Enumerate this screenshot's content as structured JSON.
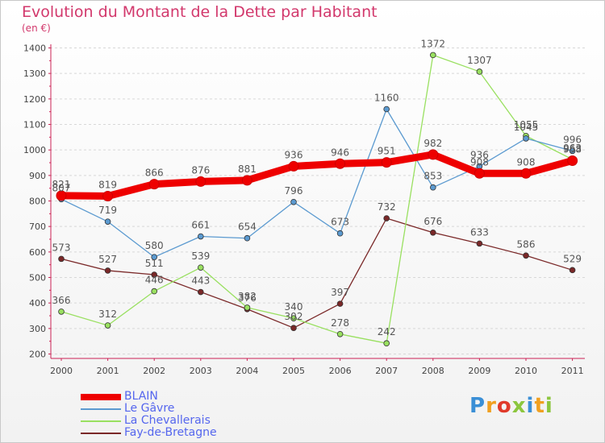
{
  "title": "Evolution du Montant de la Dette par Habitant",
  "subtitle": "(en €)",
  "logo": {
    "text": "Proxiti",
    "letter_colors": [
      "#3a8fd6",
      "#f0a020",
      "#e03a2a",
      "#8cc63e",
      "#3a8fd6",
      "#f0a020",
      "#8cc63e"
    ]
  },
  "chart_data": {
    "type": "line",
    "x": [
      "2000",
      "2001",
      "2002",
      "2003",
      "2004",
      "2005",
      "2006",
      "2007",
      "2008",
      "2009",
      "2010",
      "2011"
    ],
    "ylim": [
      200,
      1400
    ],
    "yticks": [
      "200",
      "300",
      "400",
      "500",
      "600",
      "700",
      "800",
      "900",
      "1000",
      "1100",
      "1200",
      "1300",
      "1400"
    ],
    "grid": "horizontal dashed",
    "legend_position": "bottom-left",
    "series": [
      {
        "name": "BLAIN",
        "color": "#ee0000",
        "values": [
          821,
          819,
          866,
          876,
          881,
          936,
          946,
          951,
          982,
          908,
          908,
          958
        ],
        "labels": [
          "821",
          "819",
          "866",
          "876",
          "881",
          "936",
          "946",
          "951",
          "982",
          "908",
          "908",
          "958"
        ]
      },
      {
        "name": "Le Gâvre",
        "color": "#5b9ad0",
        "values": [
          807,
          719,
          580,
          661,
          654,
          796,
          673,
          1160,
          853,
          936,
          1045,
          996
        ],
        "labels": [
          "807",
          "719",
          "580",
          "661",
          "654",
          "796",
          "673",
          "1160",
          "853",
          "936",
          "1045",
          "996"
        ]
      },
      {
        "name": "La Chevallerais",
        "color": "#99e060",
        "values": [
          366,
          312,
          446,
          539,
          382,
          340,
          278,
          242,
          1372,
          1307,
          1055,
          963
        ],
        "labels": [
          "366",
          "312",
          "446",
          "539",
          "382",
          "340",
          "278",
          "242",
          "1372",
          "1307",
          "1055",
          "963"
        ]
      },
      {
        "name": "Fay-de-Bretagne",
        "color": "#7a2828",
        "values": [
          573,
          527,
          511,
          443,
          376,
          302,
          397,
          732,
          676,
          633,
          586,
          529
        ],
        "labels": [
          "573",
          "527",
          "511",
          "443",
          "376",
          "302",
          "397",
          "732",
          "676",
          "633",
          "586",
          "529"
        ]
      }
    ]
  }
}
